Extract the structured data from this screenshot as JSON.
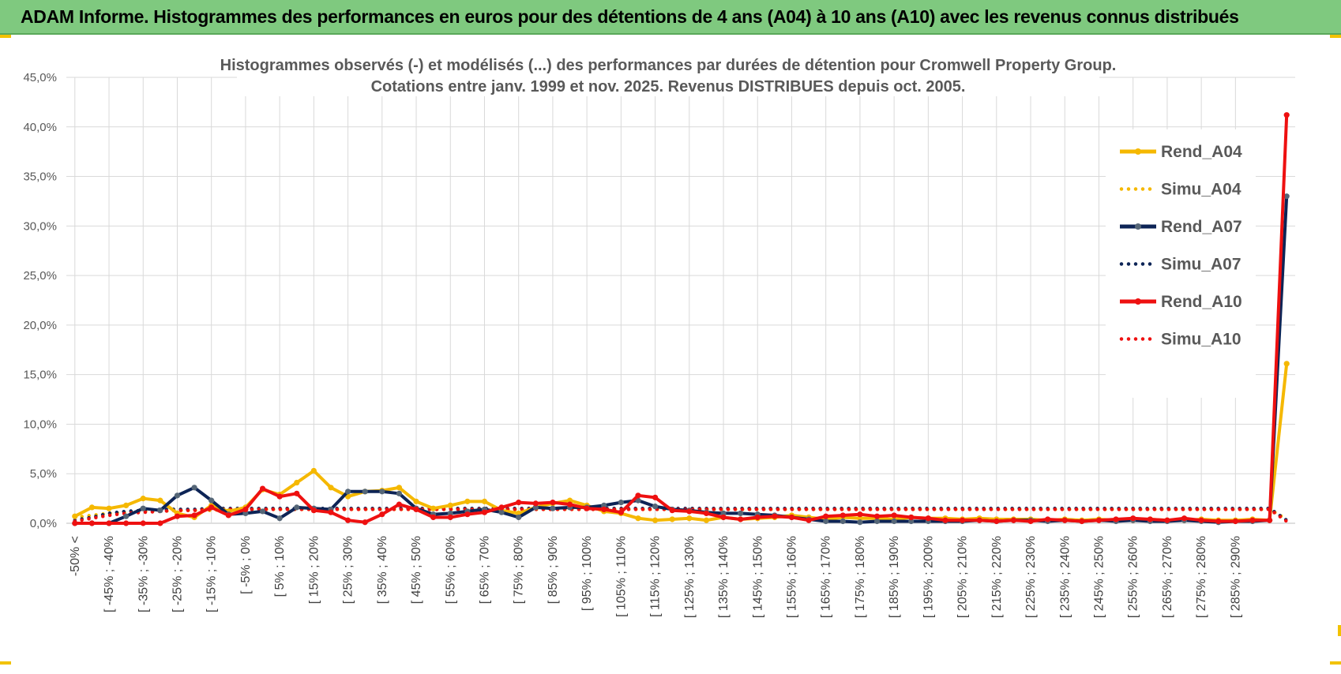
{
  "header": {
    "banner_text": "ADAM Informe. Histogrammes des performances en euros pour des détentions de 4 ans (A04) à 10 ans (A10) avec les revenus connus distribués"
  },
  "colors": {
    "banner_bg": "#7fc97f",
    "A04": "#f5b800",
    "A07": "#0d2456",
    "A10": "#ee1010",
    "marker_A07": "#556677",
    "grid": "#d9d9d9"
  },
  "chart_data": {
    "type": "line",
    "title_line1": "Histogrammes observés (-) et modélisés (...) des performances par durées de détention pour Cromwell Property Group.",
    "title_line2": "Cotations entre janv. 1999 et nov. 2025. Revenus DISTRIBUES depuis oct. 2005.",
    "ylim": [
      0,
      45
    ],
    "y_ticks": [
      "0,0%",
      "5,0%",
      "10,0%",
      "15,0%",
      "20,0%",
      "25,0%",
      "30,0%",
      "35,0%",
      "40,0%",
      "45,0%"
    ],
    "grid": true,
    "legend_position": "right",
    "x_tick_labels": [
      "-50% <",
      "[ -45% ; -40%",
      "[ -35% ; -30%",
      "[ -25% ; -20%",
      "[ -15% ; -10%",
      "[ -5% ; 0%",
      "[ 5% ; 10%",
      "[ 15% ; 20%",
      "[ 25% ; 30%",
      "[ 35% ; 40%",
      "[ 45% ; 50%",
      "[ 55% ; 60%",
      "[ 65% ; 70%",
      "[ 75% ; 80%",
      "[ 85% ; 90%",
      "[ 95% ; 100%",
      "[ 105% ; 110%",
      "[ 115% ; 120%",
      "[ 125% ; 130%",
      "[ 135% ; 140%",
      "[ 145% ; 150%",
      "[ 155% ; 160%",
      "[ 165% ; 170%",
      "[ 175% ; 180%",
      "[ 185% ; 190%",
      "[ 195% ; 200%",
      "[ 205% ; 210%",
      "[ 215% ; 220%",
      "[ 225% ; 230%",
      "[ 235% ; 240%",
      "[ 245% ; 250%",
      "[ 255% ; 260%",
      "[ 265% ; 270%",
      "[ 275% ; 280%",
      "[ 285% ; 290%"
    ],
    "series": [
      {
        "name": "Rend_A04",
        "style": "solid",
        "color": "#f5b800",
        "values": [
          0.7,
          1.6,
          1.5,
          1.8,
          2.5,
          2.3,
          1.0,
          0.6,
          1.8,
          1.2,
          1.6,
          3.4,
          2.9,
          4.1,
          5.3,
          3.6,
          2.7,
          3.2,
          3.3,
          3.6,
          2.2,
          1.5,
          1.8,
          2.2,
          2.2,
          1.3,
          1.0,
          1.6,
          2.0,
          2.3,
          1.8,
          1.2,
          1.0,
          0.5,
          0.3,
          0.4,
          0.5,
          0.3,
          0.6,
          0.4,
          0.5,
          0.6,
          0.8,
          0.6,
          0.4,
          0.6,
          0.5,
          0.5,
          0.4,
          0.6,
          0.5,
          0.5,
          0.4,
          0.5,
          0.4,
          0.4,
          0.4,
          0.3,
          0.4,
          0.3,
          0.4,
          0.3,
          0.3,
          0.4,
          0.3,
          0.3,
          0.4,
          0.3,
          0.3,
          0.4,
          0.3,
          16.1
        ]
      },
      {
        "name": "Simu_A04",
        "style": "dotted",
        "color": "#f5b800",
        "values": [
          0.6,
          0.8,
          1.0,
          1.1,
          1.2,
          1.2,
          1.3,
          1.3,
          1.3,
          1.4,
          1.4,
          1.4,
          1.4,
          1.4,
          1.4,
          1.4,
          1.4,
          1.4,
          1.4,
          1.4,
          1.4,
          1.4,
          1.4,
          1.4,
          1.4,
          1.4,
          1.4,
          1.4,
          1.4,
          1.4,
          1.4,
          1.4,
          1.4,
          1.4,
          1.4,
          1.4,
          1.4,
          1.4,
          1.4,
          1.4,
          1.4,
          1.4,
          1.4,
          1.4,
          1.4,
          1.4,
          1.4,
          1.4,
          1.4,
          1.4,
          1.4,
          1.4,
          1.4,
          1.4,
          1.4,
          1.4,
          1.4,
          1.4,
          1.4,
          1.4,
          1.4,
          1.4,
          1.4,
          1.4,
          1.4,
          1.4,
          1.4,
          1.4,
          1.4,
          1.4,
          1.4,
          0.4
        ]
      },
      {
        "name": "Rend_A07",
        "style": "solid",
        "color": "#0d2456",
        "values": [
          0.0,
          0.0,
          0.0,
          0.7,
          1.5,
          1.3,
          2.8,
          3.6,
          2.3,
          0.9,
          1.0,
          1.2,
          0.5,
          1.6,
          1.5,
          1.4,
          3.2,
          3.2,
          3.2,
          3.0,
          1.5,
          0.9,
          1.0,
          1.2,
          1.4,
          1.1,
          0.6,
          1.6,
          1.5,
          1.6,
          1.6,
          1.8,
          2.1,
          2.3,
          1.7,
          1.4,
          1.3,
          1.1,
          1.0,
          1.0,
          0.9,
          0.8,
          0.6,
          0.4,
          0.2,
          0.2,
          0.1,
          0.2,
          0.2,
          0.2,
          0.2,
          0.2,
          0.2,
          0.3,
          0.2,
          0.3,
          0.3,
          0.2,
          0.3,
          0.2,
          0.3,
          0.2,
          0.3,
          0.2,
          0.2,
          0.3,
          0.2,
          0.1,
          0.2,
          0.2,
          0.3,
          33.0
        ]
      },
      {
        "name": "Simu_A07",
        "style": "dotted",
        "color": "#0d2456",
        "values": [
          0.3,
          0.6,
          1.0,
          1.2,
          1.3,
          1.4,
          1.4,
          1.4,
          1.5,
          1.5,
          1.5,
          1.5,
          1.5,
          1.5,
          1.5,
          1.5,
          1.5,
          1.5,
          1.5,
          1.5,
          1.5,
          1.5,
          1.5,
          1.5,
          1.5,
          1.5,
          1.5,
          1.5,
          1.5,
          1.5,
          1.5,
          1.5,
          1.5,
          1.5,
          1.5,
          1.5,
          1.5,
          1.5,
          1.5,
          1.5,
          1.5,
          1.5,
          1.5,
          1.5,
          1.5,
          1.5,
          1.5,
          1.5,
          1.5,
          1.5,
          1.5,
          1.5,
          1.5,
          1.5,
          1.5,
          1.5,
          1.5,
          1.5,
          1.5,
          1.5,
          1.5,
          1.5,
          1.5,
          1.5,
          1.5,
          1.5,
          1.5,
          1.5,
          1.5,
          1.5,
          1.5,
          0.3
        ]
      },
      {
        "name": "Rend_A10",
        "style": "solid",
        "color": "#ee1010",
        "values": [
          0.0,
          0.0,
          0.0,
          0.0,
          0.0,
          0.0,
          0.7,
          0.8,
          1.6,
          0.8,
          1.4,
          3.5,
          2.7,
          3.0,
          1.3,
          1.1,
          0.3,
          0.1,
          0.9,
          1.9,
          1.4,
          0.6,
          0.6,
          0.9,
          1.1,
          1.6,
          2.1,
          2.0,
          2.1,
          1.9,
          1.5,
          1.4,
          1.1,
          2.8,
          2.6,
          1.3,
          1.2,
          1.0,
          0.6,
          0.4,
          0.6,
          0.7,
          0.6,
          0.3,
          0.7,
          0.8,
          0.9,
          0.7,
          0.8,
          0.6,
          0.5,
          0.3,
          0.3,
          0.3,
          0.2,
          0.3,
          0.2,
          0.4,
          0.3,
          0.2,
          0.3,
          0.4,
          0.5,
          0.4,
          0.3,
          0.5,
          0.3,
          0.2,
          0.2,
          0.3,
          0.3,
          41.2
        ]
      },
      {
        "name": "Simu_A10",
        "style": "dotted",
        "color": "#ee1010",
        "values": [
          0.2,
          0.5,
          0.8,
          1.0,
          1.1,
          1.2,
          1.3,
          1.3,
          1.4,
          1.4,
          1.4,
          1.4,
          1.4,
          1.4,
          1.4,
          1.4,
          1.4,
          1.4,
          1.4,
          1.4,
          1.4,
          1.4,
          1.4,
          1.4,
          1.4,
          1.4,
          1.4,
          1.4,
          1.4,
          1.4,
          1.4,
          1.4,
          1.4,
          1.4,
          1.4,
          1.4,
          1.4,
          1.4,
          1.4,
          1.4,
          1.4,
          1.4,
          1.4,
          1.4,
          1.4,
          1.4,
          1.4,
          1.4,
          1.4,
          1.4,
          1.4,
          1.4,
          1.4,
          1.4,
          1.4,
          1.4,
          1.4,
          1.4,
          1.4,
          1.4,
          1.4,
          1.4,
          1.4,
          1.4,
          1.4,
          1.4,
          1.4,
          1.4,
          1.4,
          1.4,
          1.4,
          0.2
        ]
      }
    ]
  }
}
